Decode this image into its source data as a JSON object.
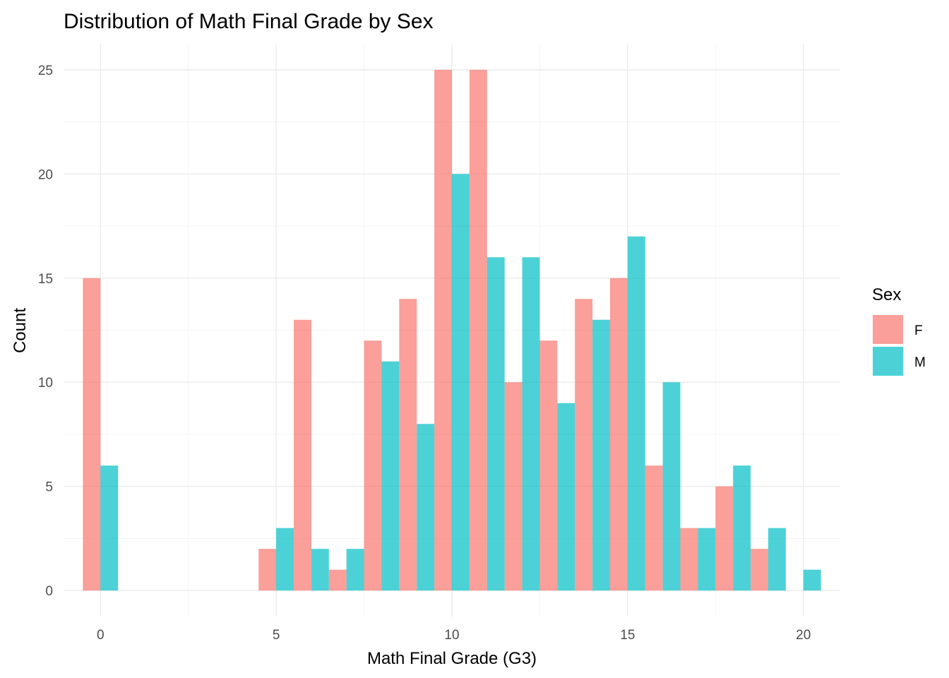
{
  "chart_data": {
    "type": "bar",
    "title": "Distribution of Math Final Grade by Sex",
    "xlabel": "Math Final Grade (G3)",
    "ylabel": "Count",
    "xlim": [
      -1.05,
      21.05
    ],
    "ylim": [
      -1.25,
      26.25
    ],
    "x_ticks": [
      "0",
      "5",
      "10",
      "15",
      "20"
    ],
    "y_ticks": [
      "0",
      "5",
      "10",
      "15",
      "20",
      "25"
    ],
    "grid": true,
    "legend": {
      "title": "Sex",
      "position": "right"
    },
    "series": [
      {
        "name": "F",
        "color": "#F8766D",
        "opacity": 0.7,
        "points": [
          {
            "x": 0,
            "y": 15
          },
          {
            "x": 5,
            "y": 2
          },
          {
            "x": 6,
            "y": 13
          },
          {
            "x": 7,
            "y": 1
          },
          {
            "x": 8,
            "y": 12
          },
          {
            "x": 9,
            "y": 14
          },
          {
            "x": 10,
            "y": 25
          },
          {
            "x": 11,
            "y": 25
          },
          {
            "x": 12,
            "y": 10
          },
          {
            "x": 13,
            "y": 12
          },
          {
            "x": 14,
            "y": 14
          },
          {
            "x": 15,
            "y": 15
          },
          {
            "x": 16,
            "y": 6
          },
          {
            "x": 17,
            "y": 3
          },
          {
            "x": 18,
            "y": 5
          },
          {
            "x": 19,
            "y": 2
          }
        ]
      },
      {
        "name": "M",
        "color": "#00BFC4",
        "opacity": 0.7,
        "points": [
          {
            "x": 0,
            "y": 6
          },
          {
            "x": 5,
            "y": 3
          },
          {
            "x": 6,
            "y": 2
          },
          {
            "x": 7,
            "y": 2
          },
          {
            "x": 8,
            "y": 11
          },
          {
            "x": 9,
            "y": 8
          },
          {
            "x": 10,
            "y": 20
          },
          {
            "x": 11,
            "y": 16
          },
          {
            "x": 12,
            "y": 16
          },
          {
            "x": 13,
            "y": 9
          },
          {
            "x": 14,
            "y": 13
          },
          {
            "x": 15,
            "y": 17
          },
          {
            "x": 16,
            "y": 10
          },
          {
            "x": 17,
            "y": 3
          },
          {
            "x": 18,
            "y": 6
          },
          {
            "x": 19,
            "y": 3
          },
          {
            "x": 20,
            "y": 1
          }
        ]
      }
    ]
  }
}
